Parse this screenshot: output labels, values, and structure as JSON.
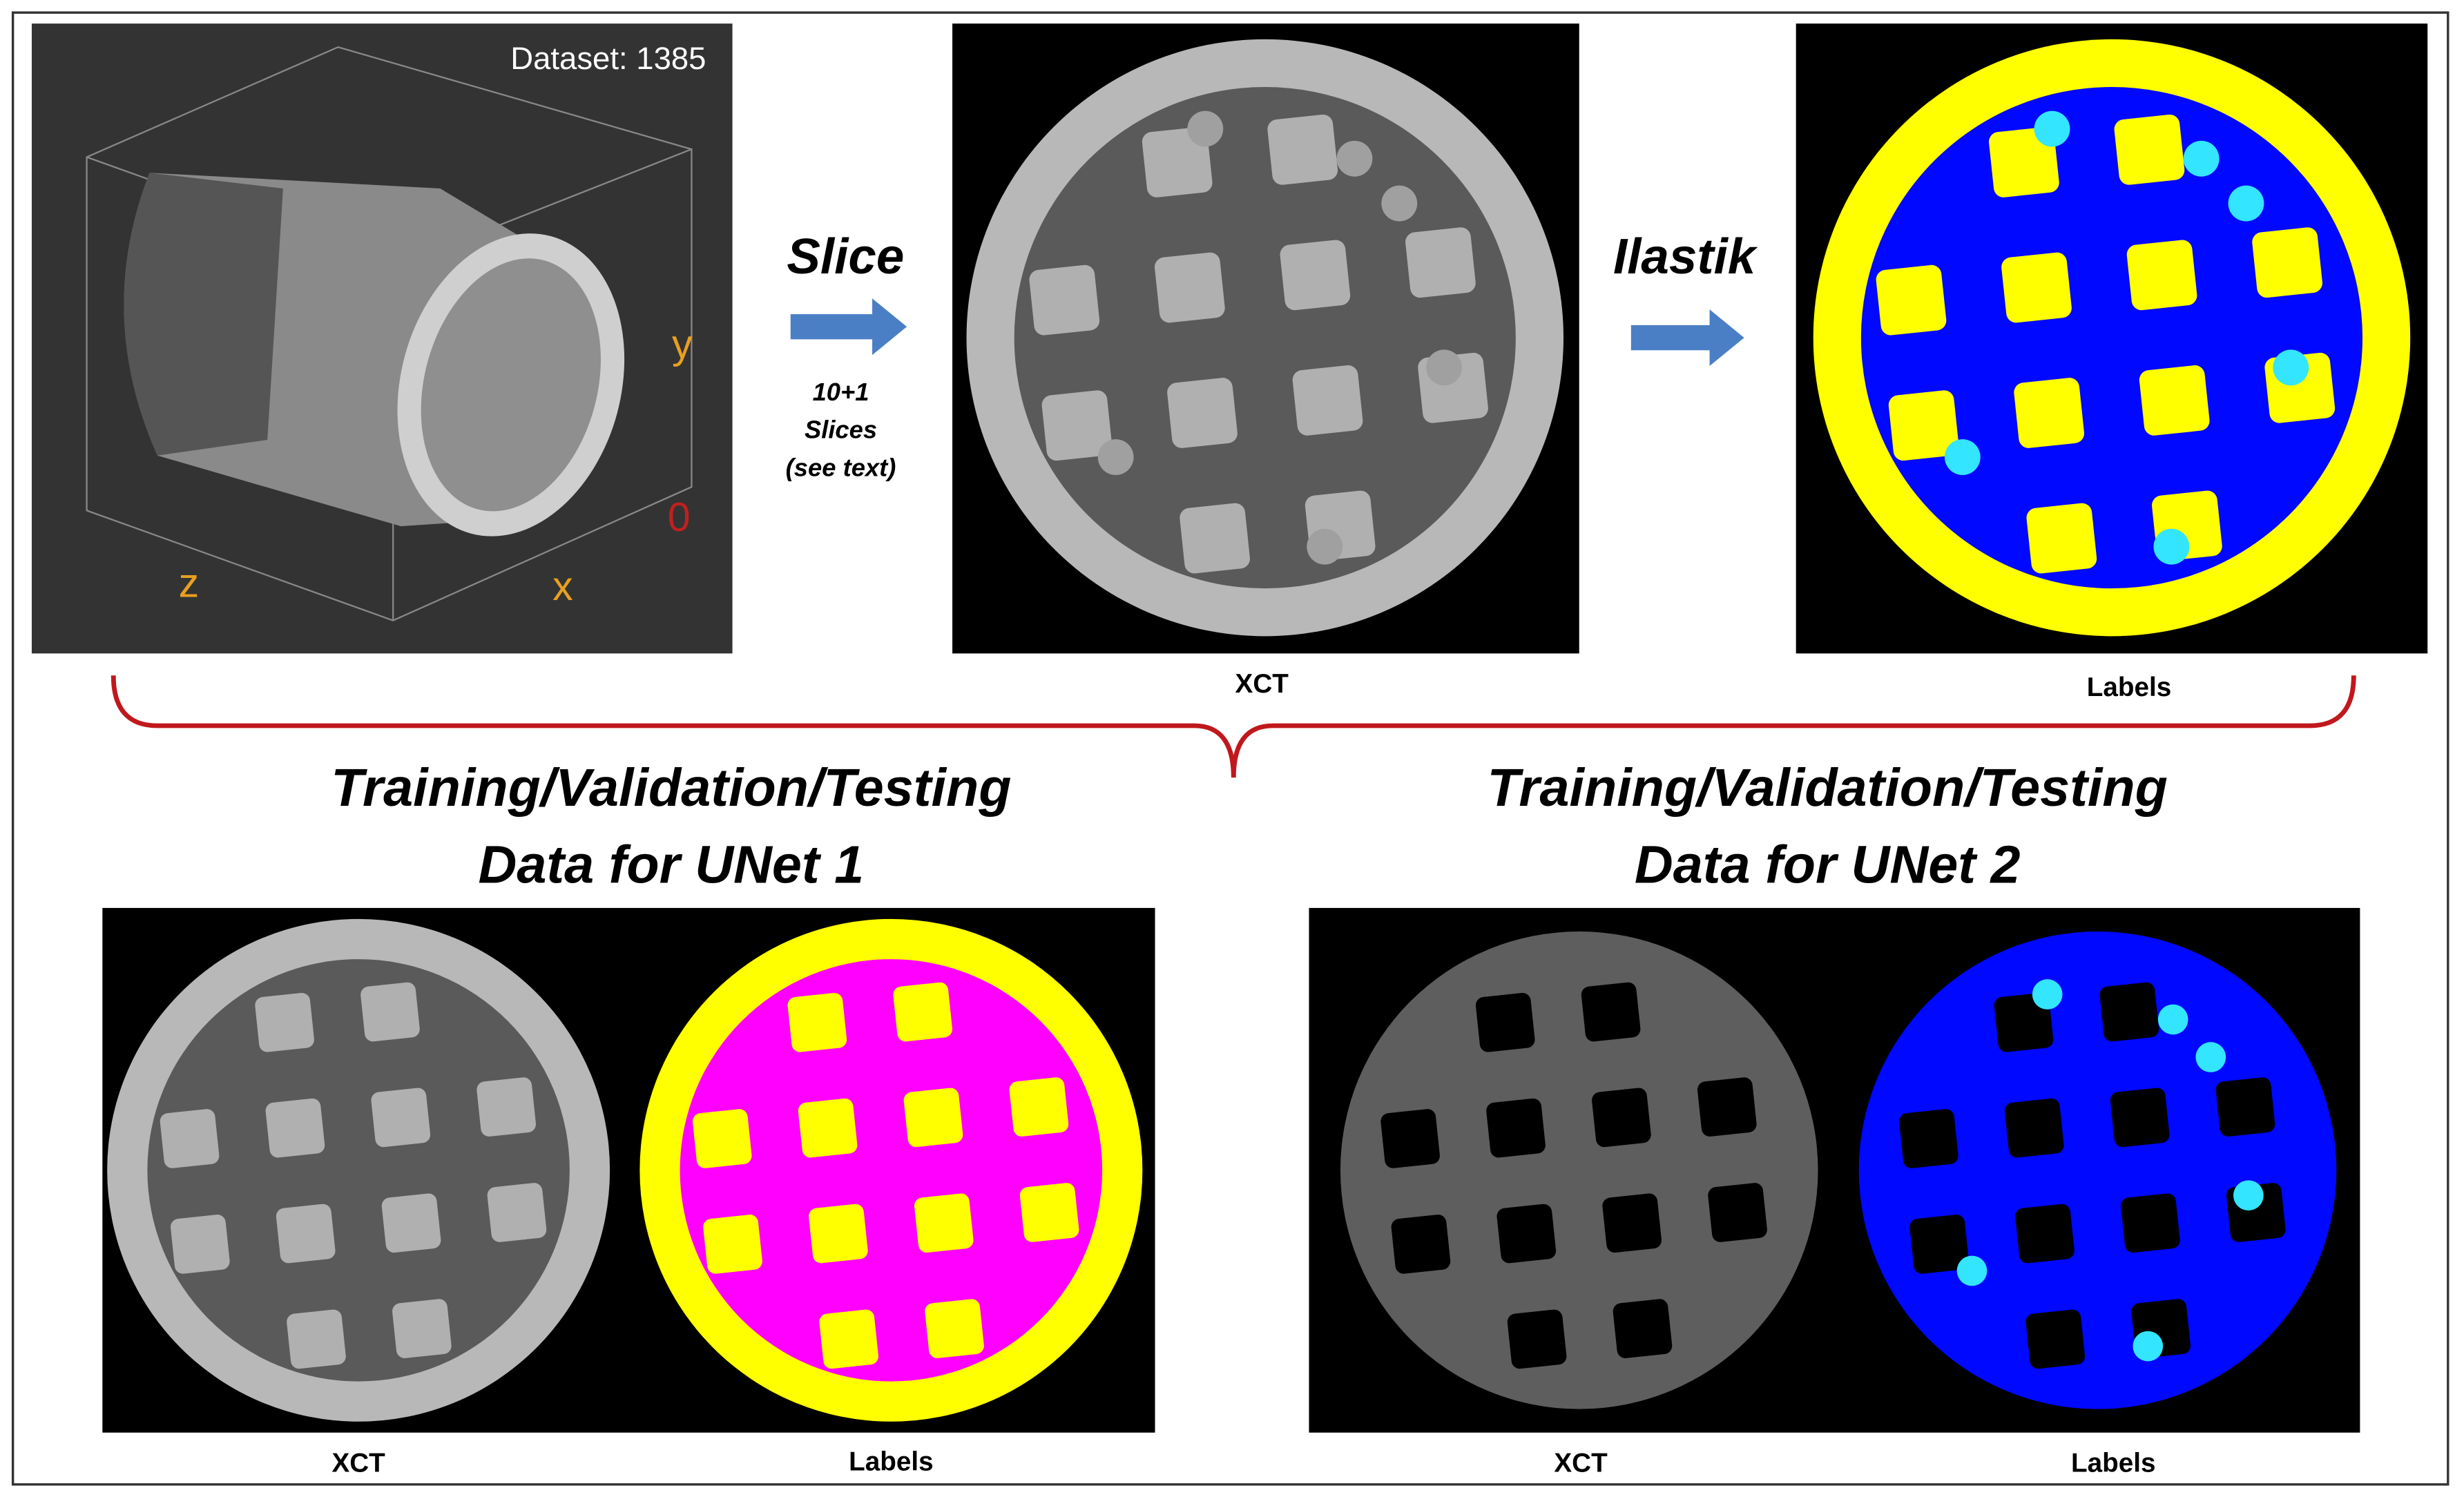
{
  "volume": {
    "dataset": "Dataset: 1385",
    "axis_y": "y",
    "axis_origin": "0",
    "axis_z": "z",
    "axis_x": "x"
  },
  "slice_step": {
    "label": "Slice",
    "note": [
      "10+1",
      "Slices",
      "(see text)"
    ]
  },
  "ilastik_step": {
    "label": "Ilastik"
  },
  "top_captions": {
    "xct": "XCT",
    "labels": "Labels"
  },
  "unet1": {
    "title": [
      "Training/Validation/Testing",
      "Data for UNet 1"
    ],
    "captions": [
      "XCT",
      "Labels"
    ]
  },
  "unet2": {
    "title": [
      "Training/Validation/Testing",
      "Data for UNet 2"
    ],
    "captions": [
      "XCT",
      "Labels"
    ]
  }
}
